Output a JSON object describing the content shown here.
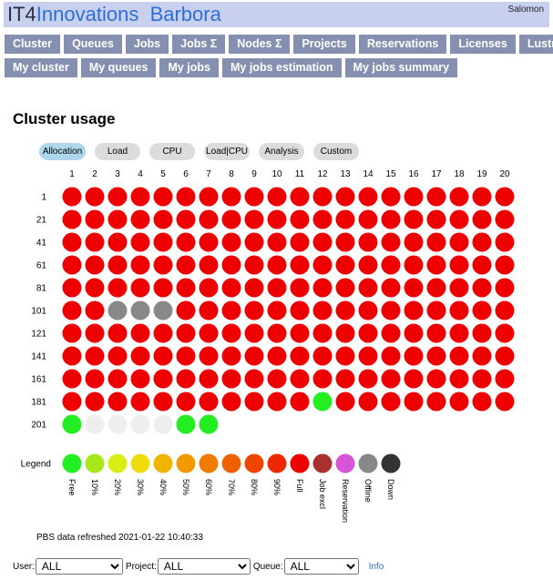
{
  "header": {
    "brand_part1": "IT4",
    "brand_part2": "Innovations",
    "cluster_name": "Barbora",
    "user": "Salomon"
  },
  "nav_primary": [
    {
      "label": "Cluster"
    },
    {
      "label": "Queues"
    },
    {
      "label": "Jobs"
    },
    {
      "label": "Jobs Σ"
    },
    {
      "label": "Nodes Σ"
    },
    {
      "label": "Projects"
    },
    {
      "label": "Reservations"
    },
    {
      "label": "Licenses"
    },
    {
      "label": "Lustre"
    }
  ],
  "nav_secondary": [
    {
      "label": "My cluster"
    },
    {
      "label": "My queues"
    },
    {
      "label": "My jobs"
    },
    {
      "label": "My jobs estimation"
    },
    {
      "label": "My jobs summary"
    }
  ],
  "page": {
    "title": "Cluster usage"
  },
  "mode_tabs": [
    {
      "label": "Allocation",
      "active": true
    },
    {
      "label": "Load",
      "active": false
    },
    {
      "label": "CPU",
      "active": false
    },
    {
      "label": "Load|CPU",
      "active": false
    },
    {
      "label": "Analysis",
      "active": false
    },
    {
      "label": "Custom",
      "active": false
    }
  ],
  "grid": {
    "columns": [
      "1",
      "2",
      "3",
      "4",
      "5",
      "6",
      "7",
      "8",
      "9",
      "10",
      "11",
      "12",
      "13",
      "14",
      "15",
      "16",
      "17",
      "18",
      "19",
      "20"
    ],
    "rows": [
      {
        "label": "1",
        "nodes": [
          "R",
          "R",
          "R",
          "R",
          "R",
          "R",
          "R",
          "R",
          "R",
          "R",
          "R",
          "R",
          "R",
          "R",
          "R",
          "R",
          "R",
          "R",
          "R",
          "R"
        ]
      },
      {
        "label": "21",
        "nodes": [
          "R",
          "R",
          "R",
          "R",
          "R",
          "R",
          "R",
          "R",
          "R",
          "R",
          "R",
          "R",
          "R",
          "R",
          "R",
          "R",
          "R",
          "R",
          "R",
          "R"
        ]
      },
      {
        "label": "41",
        "nodes": [
          "R",
          "R",
          "R",
          "R",
          "R",
          "R",
          "R",
          "R",
          "R",
          "R",
          "R",
          "R",
          "R",
          "R",
          "R",
          "R",
          "R",
          "R",
          "R",
          "R"
        ]
      },
      {
        "label": "61",
        "nodes": [
          "R",
          "R",
          "R",
          "R",
          "R",
          "R",
          "R",
          "R",
          "R",
          "R",
          "R",
          "R",
          "R",
          "R",
          "R",
          "R",
          "R",
          "R",
          "R",
          "R"
        ]
      },
      {
        "label": "81",
        "nodes": [
          "R",
          "R",
          "R",
          "R",
          "R",
          "R",
          "R",
          "R",
          "R",
          "R",
          "R",
          "R",
          "R",
          "R",
          "R",
          "R",
          "R",
          "R",
          "R",
          "R"
        ]
      },
      {
        "label": "101",
        "nodes": [
          "R",
          "R",
          "O",
          "O",
          "O",
          "R",
          "R",
          "R",
          "R",
          "R",
          "R",
          "R",
          "R",
          "R",
          "R",
          "R",
          "R",
          "R",
          "R",
          "R"
        ]
      },
      {
        "label": "121",
        "nodes": [
          "R",
          "R",
          "R",
          "R",
          "R",
          "R",
          "R",
          "R",
          "R",
          "R",
          "R",
          "R",
          "R",
          "R",
          "R",
          "R",
          "R",
          "R",
          "R",
          "R"
        ]
      },
      {
        "label": "141",
        "nodes": [
          "R",
          "R",
          "R",
          "R",
          "R",
          "R",
          "R",
          "R",
          "R",
          "R",
          "R",
          "R",
          "R",
          "R",
          "R",
          "R",
          "R",
          "R",
          "R",
          "R"
        ]
      },
      {
        "label": "161",
        "nodes": [
          "R",
          "R",
          "R",
          "R",
          "R",
          "R",
          "R",
          "R",
          "R",
          "R",
          "R",
          "R",
          "R",
          "R",
          "R",
          "R",
          "R",
          "R",
          "R",
          "R"
        ]
      },
      {
        "label": "181",
        "nodes": [
          "R",
          "R",
          "R",
          "R",
          "R",
          "R",
          "R",
          "R",
          "R",
          "R",
          "R",
          "F",
          "R",
          "R",
          "R",
          "R",
          "R",
          "R",
          "R",
          "R"
        ]
      },
      {
        "label": "201",
        "nodes": [
          "F",
          "E",
          "E",
          "E",
          "E",
          "F",
          "F"
        ]
      }
    ],
    "state_colors": {
      "R": "#ee0000",
      "F": "#22ee22",
      "O": "#888888",
      "E": "#eeeeee"
    }
  },
  "legend": {
    "title": "Legend",
    "items": [
      {
        "label": "Free",
        "color": "#22ee22"
      },
      {
        "label": "10%",
        "color": "#a6e81a"
      },
      {
        "label": "20%",
        "color": "#d8ee14"
      },
      {
        "label": "30%",
        "color": "#eedd0a"
      },
      {
        "label": "40%",
        "color": "#f0b400"
      },
      {
        "label": "50%",
        "color": "#f09a00"
      },
      {
        "label": "60%",
        "color": "#f07c00"
      },
      {
        "label": "70%",
        "color": "#ee6000"
      },
      {
        "label": "80%",
        "color": "#ee4400"
      },
      {
        "label": "90%",
        "color": "#ee2800"
      },
      {
        "label": "Full",
        "color": "#ee0000"
      },
      {
        "label": "Job excl",
        "color": "#a83232"
      },
      {
        "label": "Reservation",
        "color": "#d855d8"
      },
      {
        "label": "Offline",
        "color": "#888888"
      },
      {
        "label": "Down",
        "color": "#333333"
      }
    ]
  },
  "status": {
    "refresh_text": "PBS data refreshed 2021-01-22 10:40:33"
  },
  "filters": {
    "user_label": "User:",
    "user_value": "ALL",
    "project_label": "Project:",
    "project_value": "ALL",
    "queue_label": "Queue:",
    "queue_value": "ALL",
    "info_label": "Info"
  }
}
